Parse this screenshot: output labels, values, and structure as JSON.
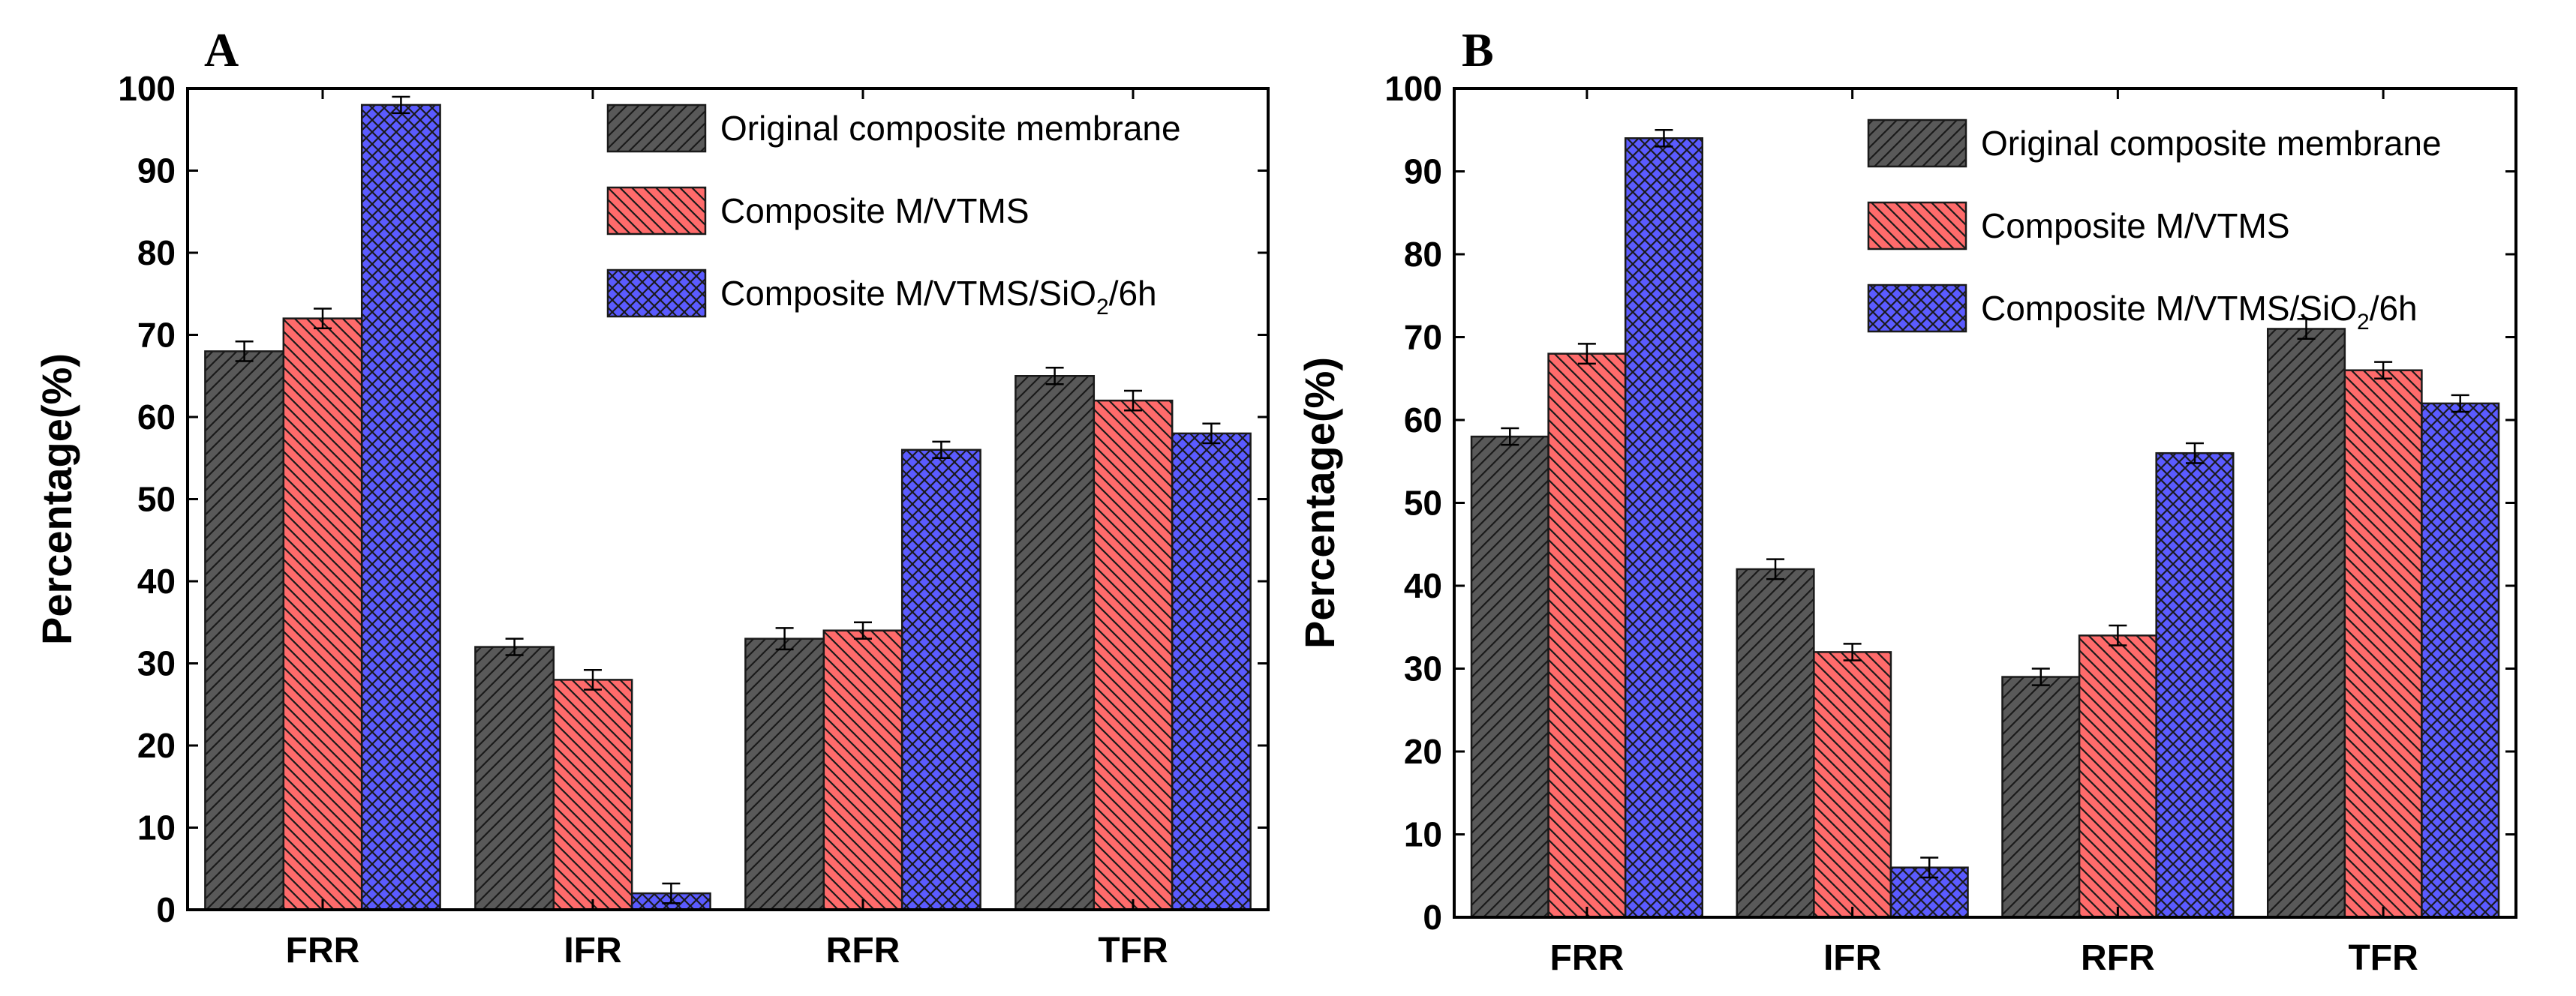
{
  "chart_data": [
    {
      "panel_label": "A",
      "type": "bar",
      "ylabel": "Percentage(%)",
      "xlabel": "",
      "ylim": [
        0,
        100
      ],
      "yticks": [
        0,
        10,
        20,
        30,
        40,
        50,
        60,
        70,
        80,
        90,
        100
      ],
      "categories": [
        "FRR",
        "IFR",
        "RFR",
        "TFR"
      ],
      "legend_position": "top-right",
      "series": [
        {
          "name": "Original composite membrane",
          "color": "#595959",
          "pattern": "diag-right",
          "values": [
            68,
            32,
            33,
            65
          ],
          "errors": [
            1.2,
            1.0,
            1.3,
            1.0
          ]
        },
        {
          "name": "Composite M/VTMS",
          "color": "#ff6b6b",
          "pattern": "diag-left",
          "values": [
            72,
            28,
            34,
            62
          ],
          "errors": [
            1.2,
            1.2,
            1.0,
            1.2
          ]
        },
        {
          "name": "Composite M/VTMS/SiO2/6h",
          "name_main": "Composite M/VTMS/SiO",
          "name_sub": "2",
          "name_tail": "/6h",
          "color": "#5b5bff",
          "pattern": "crosshatch",
          "values": [
            98,
            2,
            56,
            58
          ],
          "errors": [
            1.0,
            1.2,
            1.0,
            1.2
          ]
        }
      ]
    },
    {
      "panel_label": "B",
      "type": "bar",
      "ylabel": "Percentage(%)",
      "xlabel": "",
      "ylim": [
        0,
        100
      ],
      "yticks": [
        0,
        10,
        20,
        30,
        40,
        50,
        60,
        70,
        80,
        90,
        100
      ],
      "categories": [
        "FRR",
        "IFR",
        "RFR",
        "TFR"
      ],
      "legend_position": "top-right",
      "series": [
        {
          "name": "Original composite membrane",
          "color": "#595959",
          "pattern": "diag-right",
          "values": [
            58,
            42,
            29,
            71
          ],
          "errors": [
            1.0,
            1.2,
            1.0,
            1.2
          ]
        },
        {
          "name": "Composite M/VTMS",
          "color": "#ff6b6b",
          "pattern": "diag-left",
          "values": [
            68,
            32,
            34,
            66
          ],
          "errors": [
            1.2,
            1.0,
            1.2,
            1.0
          ]
        },
        {
          "name": "Composite M/VTMS/SiO2/6h",
          "name_main": "Composite M/VTMS/SiO",
          "name_sub": "2",
          "name_tail": "/6h",
          "color": "#5b5bff",
          "pattern": "crosshatch",
          "values": [
            94,
            6,
            56,
            62
          ],
          "errors": [
            1.0,
            1.2,
            1.2,
            1.0
          ]
        }
      ]
    }
  ]
}
